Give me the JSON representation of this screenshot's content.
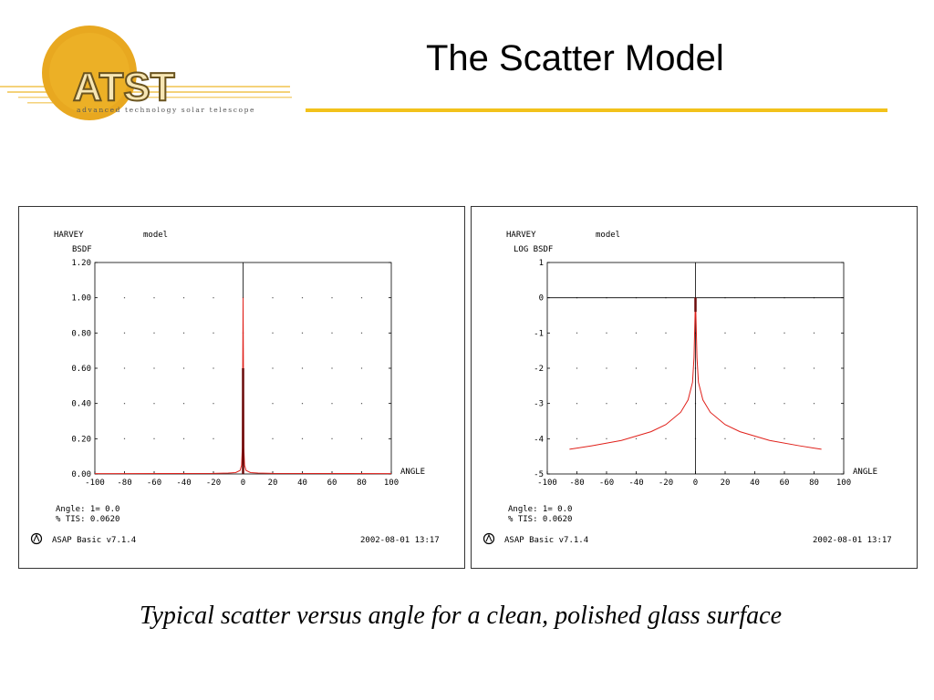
{
  "header": {
    "logo_text": "ATST",
    "logo_tagline": "advanced technology solar telescope",
    "title": "The Scatter Model",
    "accent_color": "#f2c21b",
    "logo_circle_color": "#e8a820"
  },
  "caption": "Typical scatter versus angle for a clean, polished glass surface",
  "chart_data": [
    {
      "type": "line",
      "header_left": "HARVEY",
      "header_right": "model",
      "ylabel": "BSDF",
      "xlabel": "ANGLE",
      "xlim": [
        -100,
        100
      ],
      "ylim": [
        0,
        1.2
      ],
      "xticks": [
        "-100",
        "-80",
        "-60",
        "-40",
        "-20",
        "0",
        "20",
        "40",
        "60",
        "80",
        "100"
      ],
      "yticks": [
        "0.00",
        "0.20",
        "0.40",
        "0.60",
        "0.80",
        "1.00",
        "1.20"
      ],
      "series": [
        {
          "x": [
            -100,
            -20,
            -10,
            -5,
            -2,
            -1,
            -0.5,
            0,
            0.5,
            1,
            2,
            5,
            10,
            20,
            100
          ],
          "y": [
            0.002,
            0.003,
            0.005,
            0.008,
            0.02,
            0.05,
            0.15,
            1.0,
            0.15,
            0.05,
            0.02,
            0.008,
            0.005,
            0.003,
            0.002
          ],
          "color": "#e0201a"
        }
      ],
      "spike": {
        "x": 0,
        "y": 0.6,
        "color": "#6b0a0a"
      },
      "footer_angle": "Angle: 1=  0.0",
      "footer_tis": "% TIS:   0.0620",
      "software": "ASAP Basic v7.1.4",
      "timestamp": "2002-08-01  13:17"
    },
    {
      "type": "line",
      "header_left": "HARVEY",
      "header_right": "model",
      "ylabel": "LOG BSDF",
      "xlabel": "ANGLE",
      "xlim": [
        -100,
        100
      ],
      "ylim": [
        -5,
        1
      ],
      "xticks": [
        "-100",
        "-80",
        "-60",
        "-40",
        "-20",
        "0",
        "20",
        "40",
        "60",
        "80",
        "100"
      ],
      "yticks": [
        "-5",
        "-4",
        "-3",
        "-2",
        "-1",
        "0",
        "1"
      ],
      "series": [
        {
          "x": [
            -85,
            -70,
            -50,
            -30,
            -20,
            -10,
            -5,
            -2,
            -1,
            0,
            1,
            2,
            5,
            10,
            20,
            30,
            50,
            70,
            85
          ],
          "y": [
            -4.3,
            -4.2,
            -4.05,
            -3.8,
            -3.6,
            -3.25,
            -2.9,
            -2.4,
            -1.7,
            0,
            -1.7,
            -2.4,
            -2.9,
            -3.25,
            -3.6,
            -3.8,
            -4.05,
            -4.2,
            -4.3
          ],
          "color": "#e0201a"
        }
      ],
      "spike": {
        "x": 0,
        "y": -0.4,
        "color": "#6b0a0a"
      },
      "footer_angle": "Angle: 1=  0.0",
      "footer_tis": "% TIS:   0.0620",
      "software": "ASAP Basic v7.1.4",
      "timestamp": "2002-08-01  13:17"
    }
  ]
}
